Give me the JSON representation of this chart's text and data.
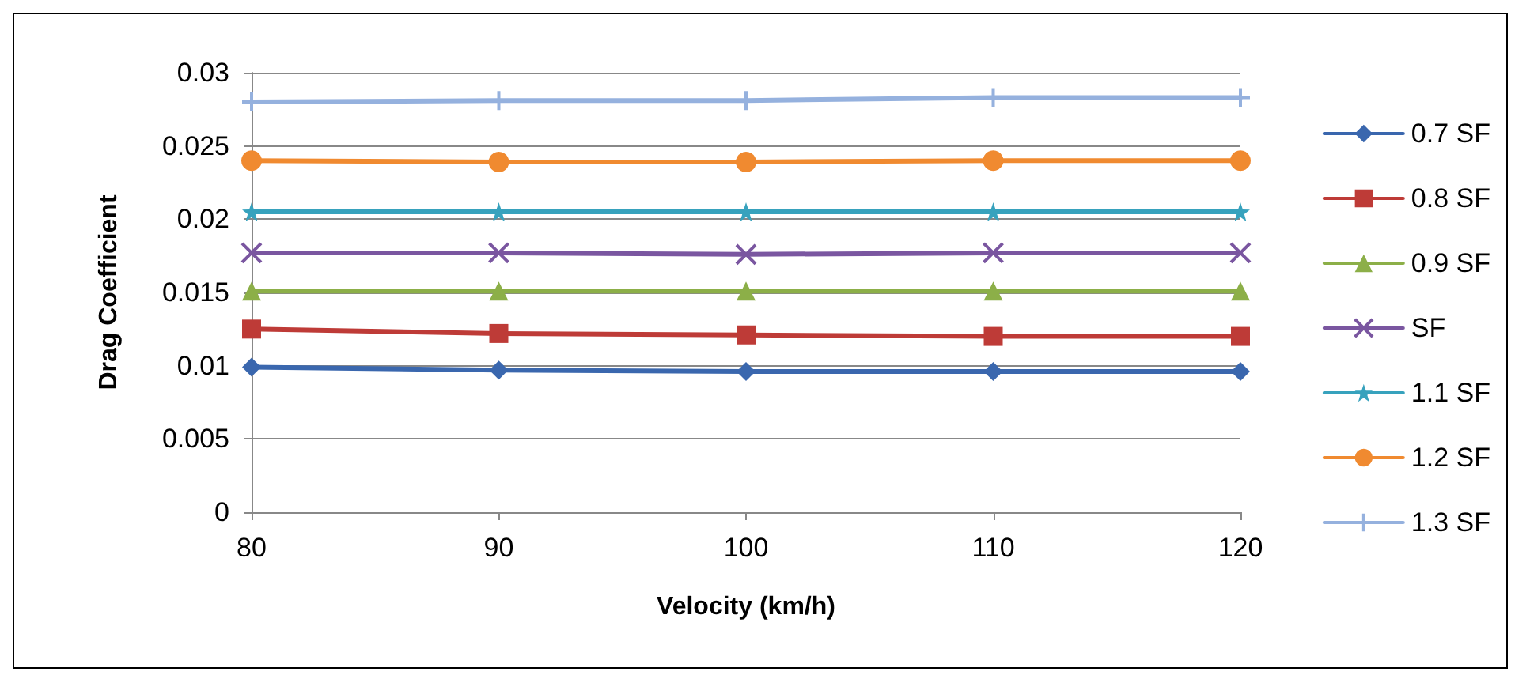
{
  "chart_data": {
    "type": "line",
    "xlabel": "Velocity (km/h)",
    "ylabel": "Drag Coefficient",
    "x": [
      80,
      90,
      100,
      110,
      120
    ],
    "xlim": [
      80,
      120
    ],
    "xticks": [
      80,
      90,
      100,
      110,
      120
    ],
    "ylim": [
      0,
      0.03
    ],
    "yticks": [
      0,
      0.005,
      0.01,
      0.015,
      0.02,
      0.025,
      0.03
    ],
    "grid": "y",
    "legend": "right",
    "line_style": "solid",
    "series": [
      {
        "name": "0.7 SF",
        "color": "#3a67ae",
        "marker": "diamond",
        "values": [
          0.0099,
          0.0097,
          0.0096,
          0.0096,
          0.0096
        ]
      },
      {
        "name": "0.8 SF",
        "color": "#be3b37",
        "marker": "square",
        "values": [
          0.0125,
          0.0122,
          0.0121,
          0.012,
          0.012
        ]
      },
      {
        "name": "0.9 SF",
        "color": "#8caf48",
        "marker": "triangle",
        "values": [
          0.0151,
          0.0151,
          0.0151,
          0.0151,
          0.0151
        ]
      },
      {
        "name": "SF",
        "color": "#7a56a0",
        "marker": "cross",
        "values": [
          0.0177,
          0.0177,
          0.0176,
          0.0177,
          0.0177
        ]
      },
      {
        "name": "1.1 SF",
        "color": "#37a2bd",
        "marker": "star",
        "values": [
          0.0205,
          0.0205,
          0.0205,
          0.0205,
          0.0205
        ]
      },
      {
        "name": "1.2 SF",
        "color": "#f08a30",
        "marker": "circle",
        "values": [
          0.024,
          0.0239,
          0.0239,
          0.024,
          0.024
        ]
      },
      {
        "name": "1.3 SF",
        "color": "#95b1de",
        "marker": "plus",
        "values": [
          0.028,
          0.0281,
          0.0281,
          0.0283,
          0.0283
        ]
      }
    ]
  }
}
